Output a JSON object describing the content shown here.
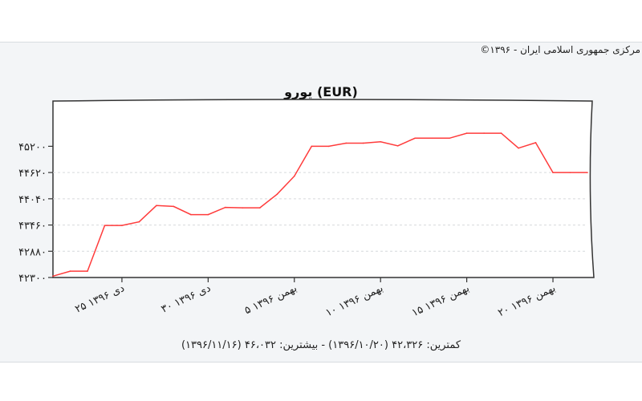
{
  "source": "مرکزی جمهوری اسلامی ایران - ۱۳۹۶©",
  "footer": "کمترین: ۴۲،۳۲۶ (۱۳۹۶/۱۰/۲۰) - بیشترین: ۴۶،۰۳۲ (۱۳۹۶/۱۱/۱۶)",
  "colors": {
    "line": "#ff3b3b",
    "grid": "#d6d9dc",
    "plot_bg": "#ffffff"
  },
  "chart_data": {
    "type": "line",
    "title": "یورو (EUR)",
    "xlabel": "",
    "ylabel": "",
    "grid": true,
    "ylim": [
      42300,
      46200
    ],
    "yticks": [
      {
        "value": 42300,
        "label": "۴۲۳۰۰"
      },
      {
        "value": 42880,
        "label": "۴۲۸۸۰"
      },
      {
        "value": 43460,
        "label": "۴۳۴۶۰"
      },
      {
        "value": 44040,
        "label": "۴۴۰۴۰"
      },
      {
        "value": 44620,
        "label": "۴۴۶۲۰"
      },
      {
        "value": 45200,
        "label": "۴۵۲۰۰"
      }
    ],
    "xticks": [
      {
        "index": 4,
        "label": "۲۵ دی ۱۳۹۶"
      },
      {
        "index": 9,
        "label": "۳۰ دی ۱۳۹۶"
      },
      {
        "index": 14,
        "label": "۵ بهمن ۱۳۹۶"
      },
      {
        "index": 19,
        "label": "۱۰ بهمن ۱۳۹۶"
      },
      {
        "index": 24,
        "label": "۱۵ بهمن ۱۳۹۶"
      },
      {
        "index": 29,
        "label": "۲۰ بهمن ۱۳۹۶"
      }
    ],
    "series": [
      {
        "values": [
          42330,
          42440,
          42440,
          43450,
          43450,
          43530,
          43890,
          43870,
          43690,
          43690,
          43850,
          43840,
          43840,
          44140,
          44540,
          45200,
          45200,
          45270,
          45270,
          45300,
          45210,
          45380,
          45380,
          45380,
          45490,
          45490,
          45490,
          45160,
          45280,
          44620,
          44620,
          44620
        ]
      }
    ]
  }
}
